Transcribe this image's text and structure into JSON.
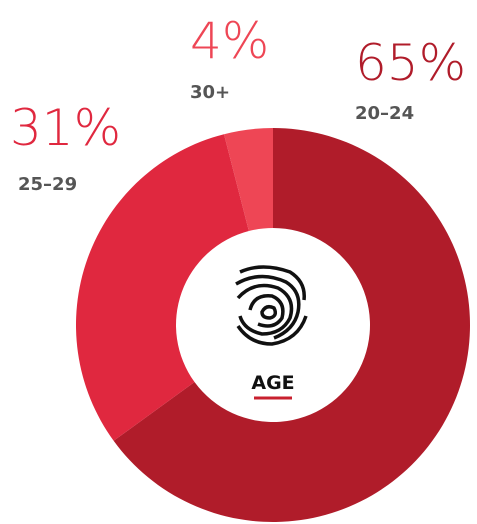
{
  "chart_data": {
    "type": "donut",
    "center_label": "AGE",
    "categories": [
      "20–24",
      "25–29",
      "30+"
    ],
    "values": [
      65,
      31,
      4
    ],
    "value_labels": [
      "65%",
      "31%",
      "4%"
    ],
    "colors": [
      "#b01c2a",
      "#e0283f",
      "#ee4655"
    ]
  }
}
